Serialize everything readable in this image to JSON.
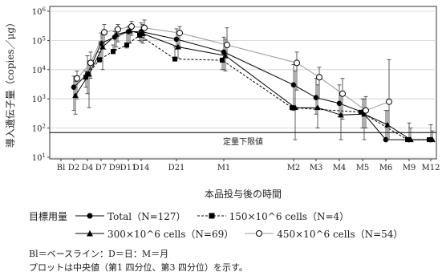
{
  "chart_data": {
    "type": "line",
    "xlabel": "本品投与後の時間",
    "ylabel": "導入遺伝子量（copies／μg）",
    "yscale": "log",
    "ylim": [
      10,
      1000000
    ],
    "yticks": [
      {
        "value": 10,
        "label": "10^1"
      },
      {
        "value": 100,
        "label": "10^2"
      },
      {
        "value": 1000,
        "label": "10^3"
      },
      {
        "value": 10000,
        "label": "10^4"
      },
      {
        "value": 100000,
        "label": "10^5"
      },
      {
        "value": 1000000,
        "label": "10^6"
      }
    ],
    "categories": [
      "Bl",
      "D2",
      "D4",
      "D7",
      "D9",
      "D11",
      "D14",
      "D21",
      "M1",
      "M2",
      "M3",
      "M4",
      "M5",
      "M6",
      "M9",
      "M12"
    ],
    "lloq": {
      "value": 70,
      "label": "定量下限値"
    },
    "series": [
      {
        "name": "Total（N=127）",
        "marker": "circle-filled",
        "dash": "solid",
        "color": "#000000",
        "points": [
          {
            "x": "D2",
            "median": 2500,
            "q1": 400,
            "q3": 6000
          },
          {
            "x": "D4",
            "median": 7000,
            "q1": 1500,
            "q3": 30000
          },
          {
            "x": "D7",
            "median": 80000,
            "q1": 20000,
            "q3": 180000
          },
          {
            "x": "D9",
            "median": 130000,
            "q1": 50000,
            "q3": 200000
          },
          {
            "x": "D11",
            "median": 200000,
            "q1": 80000,
            "q3": 300000
          },
          {
            "x": "D14",
            "median": 200000,
            "q1": 90000,
            "q3": 400000
          },
          {
            "x": "D21",
            "median": 110000,
            "q1": 50000,
            "q3": 250000
          },
          {
            "x": "M1",
            "median": 40000,
            "q1": 10000,
            "q3": 130000
          },
          {
            "x": "M2",
            "median": 3000,
            "q1": 400,
            "q3": 15000
          },
          {
            "x": "M3",
            "median": 1100,
            "q1": 300,
            "q3": 5000
          },
          {
            "x": "M4",
            "median": 700,
            "q1": 250,
            "q3": 3000
          },
          {
            "x": "M5",
            "median": 350,
            "q1": 100,
            "q3": 1000
          },
          {
            "x": "M6",
            "median": 40,
            "q1": 40,
            "q3": 400
          },
          {
            "x": "M9",
            "median": 40,
            "q1": 40,
            "q3": 150
          },
          {
            "x": "M12",
            "median": 40,
            "q1": 40,
            "q3": 130
          }
        ]
      },
      {
        "name": "150×10^6 cells（N=4）",
        "marker": "square-filled",
        "dash": "dashed",
        "color": "#000000",
        "points": [
          {
            "x": "D4",
            "median": 5500,
            "q1": 2500,
            "q3": 9000
          },
          {
            "x": "D7",
            "median": 22000,
            "q1": 18000,
            "q3": 40000
          },
          {
            "x": "D9",
            "median": 42000,
            "q1": 35000,
            "q3": 70000
          },
          {
            "x": "D11",
            "median": 70000,
            "q1": 55000,
            "q3": 180000
          },
          {
            "x": "D14",
            "median": 150000,
            "q1": 100000,
            "q3": 200000
          },
          {
            "x": "D21",
            "median": 23000,
            "q1": 20000,
            "q3": 60000
          },
          {
            "x": "M1",
            "median": 21000,
            "q1": 10000,
            "q3": 25000
          },
          {
            "x": "M2",
            "median": 500,
            "q1": 500,
            "q3": 500
          },
          {
            "x": "M5",
            "median": 350,
            "q1": 350,
            "q3": 350
          },
          {
            "x": "M9",
            "median": 40,
            "q1": 40,
            "q3": 40
          },
          {
            "x": "M12",
            "median": 40,
            "q1": 40,
            "q3": 40
          }
        ]
      },
      {
        "name": "300×10^6 cells（N=69）",
        "marker": "triangle-filled",
        "dash": "solid",
        "color": "#000000",
        "points": [
          {
            "x": "D2",
            "median": 1300,
            "q1": 300,
            "q3": 4000
          },
          {
            "x": "D4",
            "median": 7000,
            "q1": 500,
            "q3": 20000
          },
          {
            "x": "D7",
            "median": 60000,
            "q1": 10000,
            "q3": 150000
          },
          {
            "x": "D9",
            "median": 160000,
            "q1": 60000,
            "q3": 250000
          },
          {
            "x": "D11",
            "median": 210000,
            "q1": 80000,
            "q3": 320000
          },
          {
            "x": "D14",
            "median": 170000,
            "q1": 80000,
            "q3": 350000
          },
          {
            "x": "D21",
            "median": 60000,
            "q1": 25000,
            "q3": 180000
          },
          {
            "x": "M1",
            "median": 30000,
            "q1": 9000,
            "q3": 110000
          },
          {
            "x": "M2",
            "median": 500,
            "q1": 40,
            "q3": 9000
          },
          {
            "x": "M3",
            "median": 500,
            "q1": 100,
            "q3": 3000
          },
          {
            "x": "M4",
            "median": 280,
            "q1": 40,
            "q3": 1500
          },
          {
            "x": "M5",
            "median": 300,
            "q1": 40,
            "q3": 1000
          },
          {
            "x": "M6",
            "median": 130,
            "q1": 40,
            "q3": 400
          },
          {
            "x": "M9",
            "median": 40,
            "q1": 40,
            "q3": 100
          },
          {
            "x": "M12",
            "median": 40,
            "q1": 40,
            "q3": 80
          }
        ]
      },
      {
        "name": "450×10^6 cells（N=54）",
        "marker": "circle-open",
        "dash": "solid",
        "color": "#9a9a9a",
        "points": [
          {
            "x": "D2",
            "median": 5000,
            "q1": 1000,
            "q3": 9000
          },
          {
            "x": "D4",
            "median": 17000,
            "q1": 5000,
            "q3": 40000
          },
          {
            "x": "D7",
            "median": 190000,
            "q1": 50000,
            "q3": 350000
          },
          {
            "x": "D9",
            "median": 240000,
            "q1": 90000,
            "q3": 350000
          },
          {
            "x": "D11",
            "median": 300000,
            "q1": 150000,
            "q3": 450000
          },
          {
            "x": "D14",
            "median": 270000,
            "q1": 100000,
            "q3": 500000
          },
          {
            "x": "D21",
            "median": 180000,
            "q1": 60000,
            "q3": 300000
          },
          {
            "x": "M1",
            "median": 70000,
            "q1": 25000,
            "q3": 270000
          },
          {
            "x": "M2",
            "median": 17000,
            "q1": 2000,
            "q3": 40000
          },
          {
            "x": "M3",
            "median": 5500,
            "q1": 1000,
            "q3": 12000
          },
          {
            "x": "M4",
            "median": 1500,
            "q1": 200,
            "q3": 5000
          },
          {
            "x": "M5",
            "median": 400,
            "q1": 100,
            "q3": 1200
          },
          {
            "x": "M6",
            "median": 800,
            "q1": 40,
            "q3": 22000
          }
        ]
      }
    ]
  },
  "legend": {
    "title": "目標用量",
    "items": [
      "Total（N=127）",
      "150×10^6 cells（N=4）",
      "300×10^6 cells（N=69）",
      "450×10^6 cells（N=54）"
    ]
  },
  "footnotes": {
    "line1": "Bl＝ベースライン：D＝日：M＝月",
    "line2": "プロットは中央値（第1 四分位、第3 四分位）を示す。"
  }
}
